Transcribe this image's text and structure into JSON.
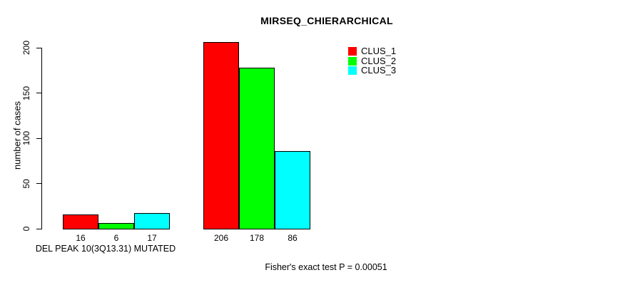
{
  "chart_data": {
    "type": "bar",
    "title": "MIRSEQ_CHIERARCHICAL",
    "xlabel": "",
    "ylabel": "number of cases",
    "ylim": [
      0,
      210
    ],
    "yticks": [
      0,
      50,
      100,
      150,
      200
    ],
    "grid": false,
    "legend_position": "top-right-inside",
    "categories": [
      "DEL PEAK 10(3Q13.31) MUTATED",
      ""
    ],
    "series": [
      {
        "name": "CLUS_1",
        "color": "#ff0000",
        "values": [
          16,
          206
        ]
      },
      {
        "name": "CLUS_2",
        "color": "#00ff00",
        "values": [
          6,
          178
        ]
      },
      {
        "name": "CLUS_3",
        "color": "#00ffff",
        "values": [
          17,
          86
        ]
      }
    ],
    "bar_value_labels": [
      [
        16,
        6,
        17
      ],
      [
        206,
        178,
        86
      ]
    ],
    "bar_border_color": "#000000",
    "annotation": "Fisher's exact test P = 0.00051"
  },
  "legend": {
    "items": [
      {
        "label": "CLUS_1",
        "color": "#ff0000"
      },
      {
        "label": "CLUS_2",
        "color": "#00ff00"
      },
      {
        "label": "CLUS_3",
        "color": "#00ffff"
      }
    ]
  },
  "footer": {
    "pvalue_text": "Fisher's exact test P = 0.00051"
  }
}
